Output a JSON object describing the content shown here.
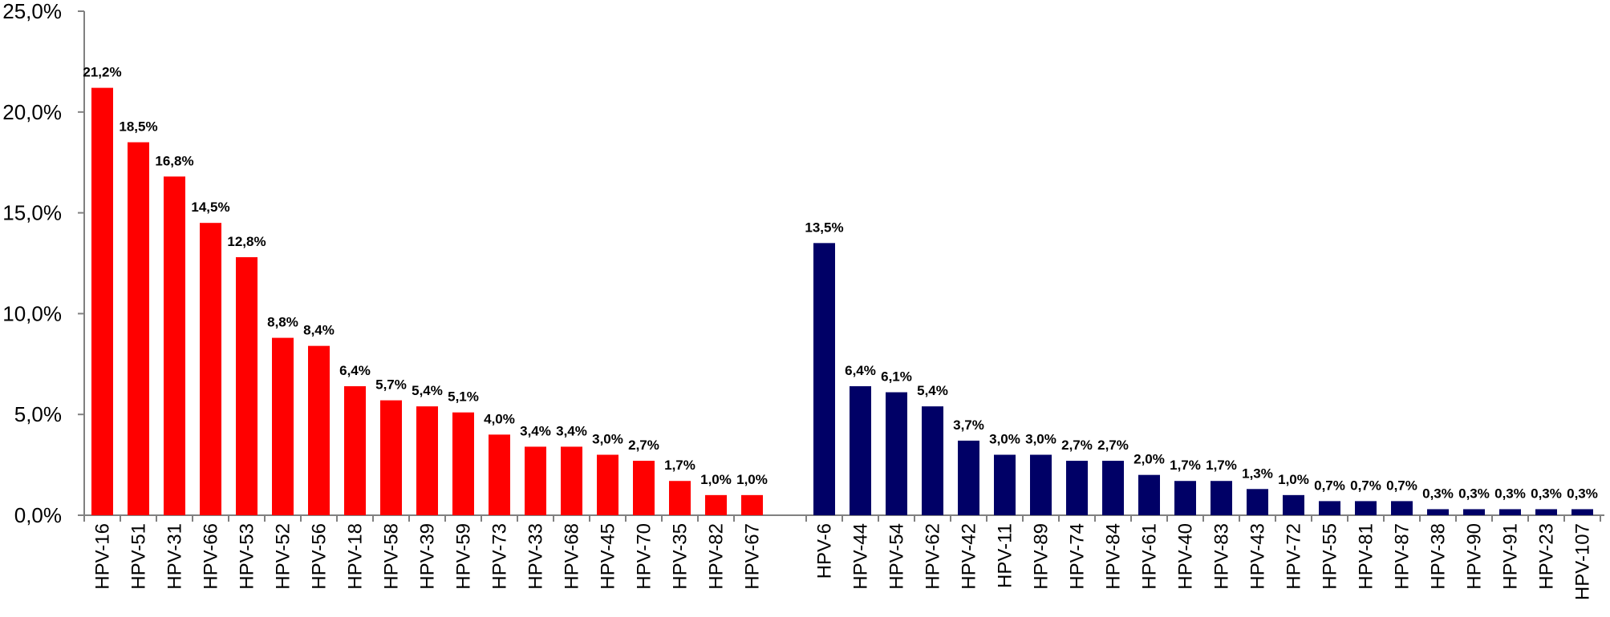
{
  "chart_data": {
    "type": "bar",
    "title": "",
    "xlabel": "",
    "ylabel": "",
    "ylim": [
      0,
      25
    ],
    "y_ticks": [
      "0,0%",
      "5,0%",
      "10,0%",
      "15,0%",
      "20,0%",
      "25,0%"
    ],
    "y_tick_values": [
      0,
      5,
      10,
      15,
      20,
      25
    ],
    "grid": false,
    "legend": "none",
    "groups": [
      {
        "color": "#ff0000",
        "categories": [
          "HPV-16",
          "HPV-51",
          "HPV-31",
          "HPV-66",
          "HPV-53",
          "HPV-52",
          "HPV-56",
          "HPV-18",
          "HPV-58",
          "HPV-39",
          "HPV-59",
          "HPV-73",
          "HPV-33",
          "HPV-68",
          "HPV-45",
          "HPV-70",
          "HPV-35",
          "HPV-82",
          "HPV-67"
        ],
        "values": [
          21.2,
          18.5,
          16.8,
          14.5,
          12.8,
          8.8,
          8.4,
          6.4,
          5.7,
          5.4,
          5.1,
          4.0,
          3.4,
          3.4,
          3.0,
          2.7,
          1.7,
          1.0,
          1.0
        ],
        "labels": [
          "21,2%",
          "18,5%",
          "16,8%",
          "14,5%",
          "12,8%",
          "8,8%",
          "8,4%",
          "6,4%",
          "5,7%",
          "5,4%",
          "5,1%",
          "4,0%",
          "3,4%",
          "3,4%",
          "3,0%",
          "2,7%",
          "1,7%",
          "1,0%",
          "1,0%"
        ]
      },
      {
        "color": "#000066",
        "categories": [
          "HPV-6",
          "HPV-44",
          "HPV-54",
          "HPV-62",
          "HPV-42",
          "HPV-11",
          "HPV-89",
          "HPV-74",
          "HPV-84",
          "HPV-61",
          "HPV-40",
          "HPV-83",
          "HPV-43",
          "HPV-72",
          "HPV-55",
          "HPV-81",
          "HPV-87",
          "HPV-38",
          "HPV-90",
          "HPV-91",
          "HPV-23",
          "HPV-107"
        ],
        "values": [
          13.5,
          6.4,
          6.1,
          5.4,
          3.7,
          3.0,
          3.0,
          2.7,
          2.7,
          2.0,
          1.7,
          1.7,
          1.3,
          1.0,
          0.7,
          0.7,
          0.7,
          0.3,
          0.3,
          0.3,
          0.3,
          0.3
        ],
        "labels": [
          "13,5%",
          "6,4%",
          "6,1%",
          "5,4%",
          "3,7%",
          "3,0%",
          "3,0%",
          "2,7%",
          "2,7%",
          "2,0%",
          "1,7%",
          "1,7%",
          "1,3%",
          "1,0%",
          "0,7%",
          "0,7%",
          "0,7%",
          "0,3%",
          "0,3%",
          "0,3%",
          "0,3%",
          "0,3%"
        ]
      }
    ]
  }
}
